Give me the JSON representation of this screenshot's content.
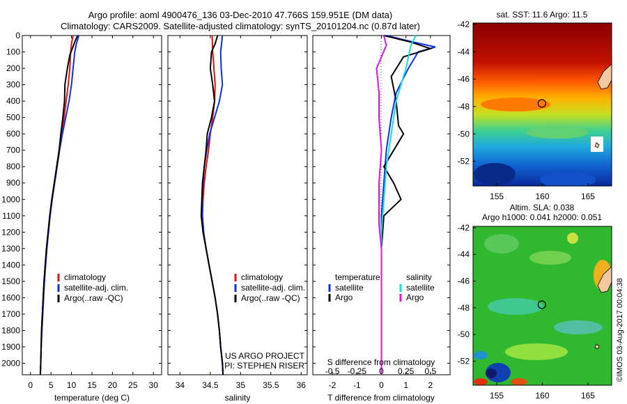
{
  "header": {
    "line1": "Argo profile: aoml 4900476_136 03-Dec-2010 47.766S 159.951E (DM data)",
    "line2": "Climatology: CARS2009. Satellite-adjusted climatology: synTS_20101204.nc (0.87d later)"
  },
  "colors": {
    "climatology": "#e01010",
    "satellite": "#1030e0",
    "argo": "#000000",
    "cyan": "#10e0e0",
    "magenta": "#e010e0"
  },
  "chart_data": [
    {
      "type": "line",
      "id": "temperature",
      "xlabel": "temperature (deg C)",
      "ylabel": "",
      "xlim": [
        -2,
        32
      ],
      "ylim": [
        2070,
        0
      ],
      "xticks": [
        0,
        5,
        10,
        15,
        20,
        25,
        30
      ],
      "yticks": [
        0,
        100,
        200,
        300,
        400,
        500,
        600,
        700,
        800,
        900,
        1000,
        1100,
        1200,
        1300,
        1400,
        1500,
        1600,
        1700,
        1800,
        1900,
        2000
      ],
      "legend": [
        "climatology",
        "satellite-adj. clim.",
        "Argo(..raw -QC)"
      ],
      "series": [
        {
          "name": "climatology",
          "color": "#e01010",
          "points": [
            [
              10.4,
              0
            ],
            [
              10.0,
              50
            ],
            [
              9.8,
              100
            ],
            [
              9.6,
              200
            ],
            [
              9.2,
              300
            ],
            [
              8.7,
              400
            ],
            [
              8.2,
              500
            ],
            [
              7.6,
              600
            ],
            [
              7.0,
              700
            ],
            [
              6.4,
              800
            ],
            [
              5.8,
              900
            ],
            [
              5.2,
              1000
            ],
            [
              4.7,
              1100
            ],
            [
              4.3,
              1200
            ],
            [
              3.9,
              1300
            ],
            [
              3.6,
              1400
            ],
            [
              3.3,
              1500
            ],
            [
              3.1,
              1600
            ],
            [
              2.9,
              1700
            ],
            [
              2.7,
              1800
            ],
            [
              2.6,
              1900
            ],
            [
              2.5,
              2000
            ],
            [
              2.4,
              2070
            ]
          ]
        },
        {
          "name": "satellite-adj. clim.",
          "color": "#1030e0",
          "points": [
            [
              11.8,
              0
            ],
            [
              11.2,
              50
            ],
            [
              10.8,
              100
            ],
            [
              10.4,
              200
            ],
            [
              10.0,
              300
            ],
            [
              9.4,
              400
            ],
            [
              8.6,
              500
            ],
            [
              7.8,
              600
            ],
            [
              7.1,
              700
            ],
            [
              6.5,
              800
            ],
            [
              5.9,
              900
            ],
            [
              5.3,
              1000
            ],
            [
              4.8,
              1100
            ],
            [
              4.4,
              1200
            ],
            [
              4.0,
              1300
            ],
            [
              3.7,
              1400
            ],
            [
              3.4,
              1500
            ],
            [
              3.2,
              1600
            ],
            [
              3.0,
              1700
            ],
            [
              2.8,
              1800
            ],
            [
              2.6,
              1900
            ],
            [
              2.5,
              2000
            ],
            [
              2.4,
              2070
            ]
          ]
        },
        {
          "name": "Argo(..raw -QC)",
          "color": "#000000",
          "points": [
            [
              11.5,
              0
            ],
            [
              10.8,
              40
            ],
            [
              10.2,
              80
            ],
            [
              9.6,
              120
            ],
            [
              9.0,
              200
            ],
            [
              8.4,
              300
            ],
            [
              8.3,
              400
            ],
            [
              7.9,
              500
            ],
            [
              7.4,
              600
            ],
            [
              7.0,
              700
            ],
            [
              6.4,
              800
            ],
            [
              5.8,
              900
            ],
            [
              5.2,
              1000
            ],
            [
              4.7,
              1100
            ],
            [
              4.3,
              1200
            ],
            [
              3.9,
              1300
            ],
            [
              3.6,
              1400
            ],
            [
              3.3,
              1500
            ],
            [
              3.1,
              1600
            ],
            [
              2.9,
              1700
            ],
            [
              2.7,
              1800
            ],
            [
              2.6,
              1900
            ],
            [
              2.5,
              2000
            ],
            [
              2.4,
              2070
            ]
          ]
        }
      ]
    },
    {
      "type": "line",
      "id": "salinity",
      "xlabel": "salinity",
      "ylabel": "",
      "xlim": [
        33.8,
        36.1
      ],
      "ylim": [
        2070,
        0
      ],
      "xticks": [
        34,
        34.5,
        35,
        35.5,
        36
      ],
      "legend": [
        "climatology",
        "satellite-adj. clim.",
        "Argo(..raw -QC)"
      ],
      "annotations": [
        "US ARGO PROJECT",
        "PI: STEPHEN RISER"
      ],
      "series": [
        {
          "name": "climatology",
          "color": "#e01010",
          "points": [
            [
              34.53,
              0
            ],
            [
              34.54,
              100
            ],
            [
              34.56,
              200
            ],
            [
              34.58,
              300
            ],
            [
              34.57,
              400
            ],
            [
              34.54,
              500
            ],
            [
              34.5,
              600
            ],
            [
              34.47,
              700
            ],
            [
              34.43,
              800
            ],
            [
              34.4,
              900
            ],
            [
              34.38,
              1000
            ],
            [
              34.37,
              1100
            ],
            [
              34.39,
              1200
            ],
            [
              34.43,
              1300
            ],
            [
              34.48,
              1400
            ],
            [
              34.53,
              1500
            ],
            [
              34.58,
              1600
            ],
            [
              34.62,
              1700
            ],
            [
              34.65,
              1800
            ],
            [
              34.67,
              1900
            ],
            [
              34.7,
              2000
            ],
            [
              34.71,
              2070
            ]
          ]
        },
        {
          "name": "satellite-adj. clim.",
          "color": "#1030e0",
          "points": [
            [
              34.7,
              0
            ],
            [
              34.67,
              100
            ],
            [
              34.68,
              200
            ],
            [
              34.7,
              300
            ],
            [
              34.65,
              400
            ],
            [
              34.57,
              500
            ],
            [
              34.49,
              600
            ],
            [
              34.44,
              700
            ],
            [
              34.4,
              800
            ],
            [
              34.38,
              900
            ],
            [
              34.37,
              1000
            ],
            [
              34.37,
              1100
            ],
            [
              34.39,
              1200
            ],
            [
              34.43,
              1300
            ],
            [
              34.48,
              1400
            ],
            [
              34.53,
              1500
            ],
            [
              34.58,
              1600
            ],
            [
              34.62,
              1700
            ],
            [
              34.65,
              1800
            ],
            [
              34.67,
              1900
            ],
            [
              34.7,
              2000
            ],
            [
              34.71,
              2070
            ]
          ]
        },
        {
          "name": "Argo(..raw -QC)",
          "color": "#000000",
          "points": [
            [
              34.62,
              0
            ],
            [
              34.58,
              50
            ],
            [
              34.52,
              100
            ],
            [
              34.5,
              200
            ],
            [
              34.54,
              300
            ],
            [
              34.57,
              400
            ],
            [
              34.52,
              500
            ],
            [
              34.45,
              600
            ],
            [
              34.43,
              700
            ],
            [
              34.4,
              800
            ],
            [
              34.37,
              900
            ],
            [
              34.36,
              1000
            ],
            [
              34.35,
              1100
            ],
            [
              34.38,
              1200
            ],
            [
              34.43,
              1300
            ],
            [
              34.48,
              1400
            ],
            [
              34.53,
              1500
            ],
            [
              34.58,
              1600
            ],
            [
              34.62,
              1700
            ],
            [
              34.65,
              1800
            ],
            [
              34.67,
              1900
            ],
            [
              34.7,
              2000
            ],
            [
              34.71,
              2070
            ]
          ]
        }
      ]
    },
    {
      "type": "line",
      "id": "difference",
      "xlabel": "T difference from climatology",
      "xlabel_top": "S difference from climatology",
      "xlim": [
        -2.8,
        2.8
      ],
      "ylim": [
        2070,
        0
      ],
      "xticks": [
        -2,
        -1,
        0,
        1,
        2
      ],
      "xticks_s": [
        -0.5,
        -0.25,
        0,
        0.25,
        0.5
      ],
      "legend_titles": [
        "temperature",
        "salinity"
      ],
      "legend": [
        "satellite",
        "Argo",
        "satellite",
        "Argo"
      ],
      "series": [
        {
          "name": "satellite",
          "group": "temperature",
          "color": "#1030e0",
          "points": [
            [
              0.2,
              0
            ],
            [
              1.3,
              40
            ],
            [
              2.2,
              70
            ],
            [
              1.5,
              100
            ],
            [
              1.1,
              200
            ],
            [
              0.6,
              350
            ],
            [
              0.4,
              500
            ],
            [
              0.2,
              700
            ],
            [
              0.1,
              900
            ],
            [
              0.0,
              1100
            ],
            [
              0.0,
              1300
            ],
            [
              0.0,
              2070
            ]
          ]
        },
        {
          "name": "Argo",
          "group": "temperature",
          "color": "#000000",
          "points": [
            [
              0.1,
              0
            ],
            [
              1.2,
              40
            ],
            [
              2.0,
              80
            ],
            [
              0.9,
              130
            ],
            [
              0.4,
              250
            ],
            [
              0.6,
              400
            ],
            [
              0.7,
              550
            ],
            [
              0.9,
              600
            ],
            [
              0.5,
              700
            ],
            [
              0.1,
              800
            ],
            [
              0.5,
              900
            ],
            [
              0.8,
              1000
            ],
            [
              0.1,
              1100
            ],
            [
              0.0,
              1300
            ],
            [
              0.0,
              2070
            ]
          ]
        },
        {
          "name": "satellite",
          "group": "salinity",
          "color": "#10e0e0",
          "points": [
            [
              1.4,
              0
            ],
            [
              1.2,
              60
            ],
            [
              1.0,
              200
            ],
            [
              0.6,
              400
            ],
            [
              0.4,
              600
            ],
            [
              0.2,
              800
            ],
            [
              0.1,
              1000
            ],
            [
              0.0,
              1200
            ],
            [
              0.0,
              2070
            ]
          ]
        },
        {
          "name": "Argo",
          "group": "salinity",
          "color": "#e010e0",
          "points": [
            [
              0.1,
              0
            ],
            [
              0.2,
              60
            ],
            [
              -0.2,
              200
            ],
            [
              -0.1,
              350
            ],
            [
              -0.1,
              500
            ],
            [
              0.0,
              700
            ],
            [
              -0.1,
              900
            ],
            [
              -0.1,
              1000
            ],
            [
              -0.1,
              1150
            ],
            [
              0.0,
              1300
            ],
            [
              0.0,
              2070
            ]
          ]
        }
      ]
    },
    {
      "type": "heatmap",
      "id": "sst-map",
      "title": "sat. SST: 11.6 Argo: 11.5",
      "xticks": [
        155,
        160,
        165
      ],
      "yticks": [
        -42,
        -44,
        -46,
        -48,
        -50,
        -52
      ],
      "xlim": [
        152.4,
        167.6
      ],
      "ylim": [
        -53.8,
        -41.9
      ],
      "marker": [
        159.95,
        -47.77
      ]
    },
    {
      "type": "heatmap",
      "id": "sla-map",
      "title": "Altim. SLA: 0.038",
      "subtitle": "Argo h1000: 0.041 h2000: 0.051",
      "xticks": [
        155,
        160,
        165
      ],
      "yticks": [
        -42,
        -44,
        -46,
        -48,
        -50,
        -52
      ],
      "xlim": [
        152.4,
        167.6
      ],
      "ylim": [
        -53.8,
        -41.9
      ],
      "marker": [
        159.95,
        -47.77
      ]
    }
  ],
  "footer": {
    "stamp": "©IMOS 03-Aug-2017 00:04:38"
  }
}
